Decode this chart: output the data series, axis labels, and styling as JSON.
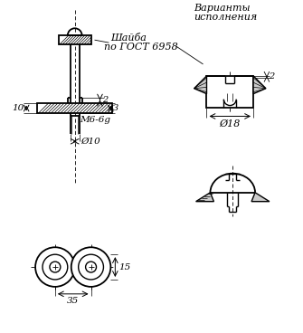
{
  "bg_color": "#ffffff",
  "line_color": "#000000",
  "annotations": {
    "shaiba": "Шайба",
    "po_gost": "по ГОСТ 6958",
    "varianty": "Варианты",
    "ispolneniya": "исполнения",
    "m6": "M6-6g",
    "d10": "Ø10",
    "d18": "Ø18",
    "dim10": "10",
    "dim2": "2",
    "dim3": "3",
    "dim15": "15",
    "dim35": "35"
  },
  "figsize": [
    3.35,
    3.68
  ],
  "dpi": 100
}
